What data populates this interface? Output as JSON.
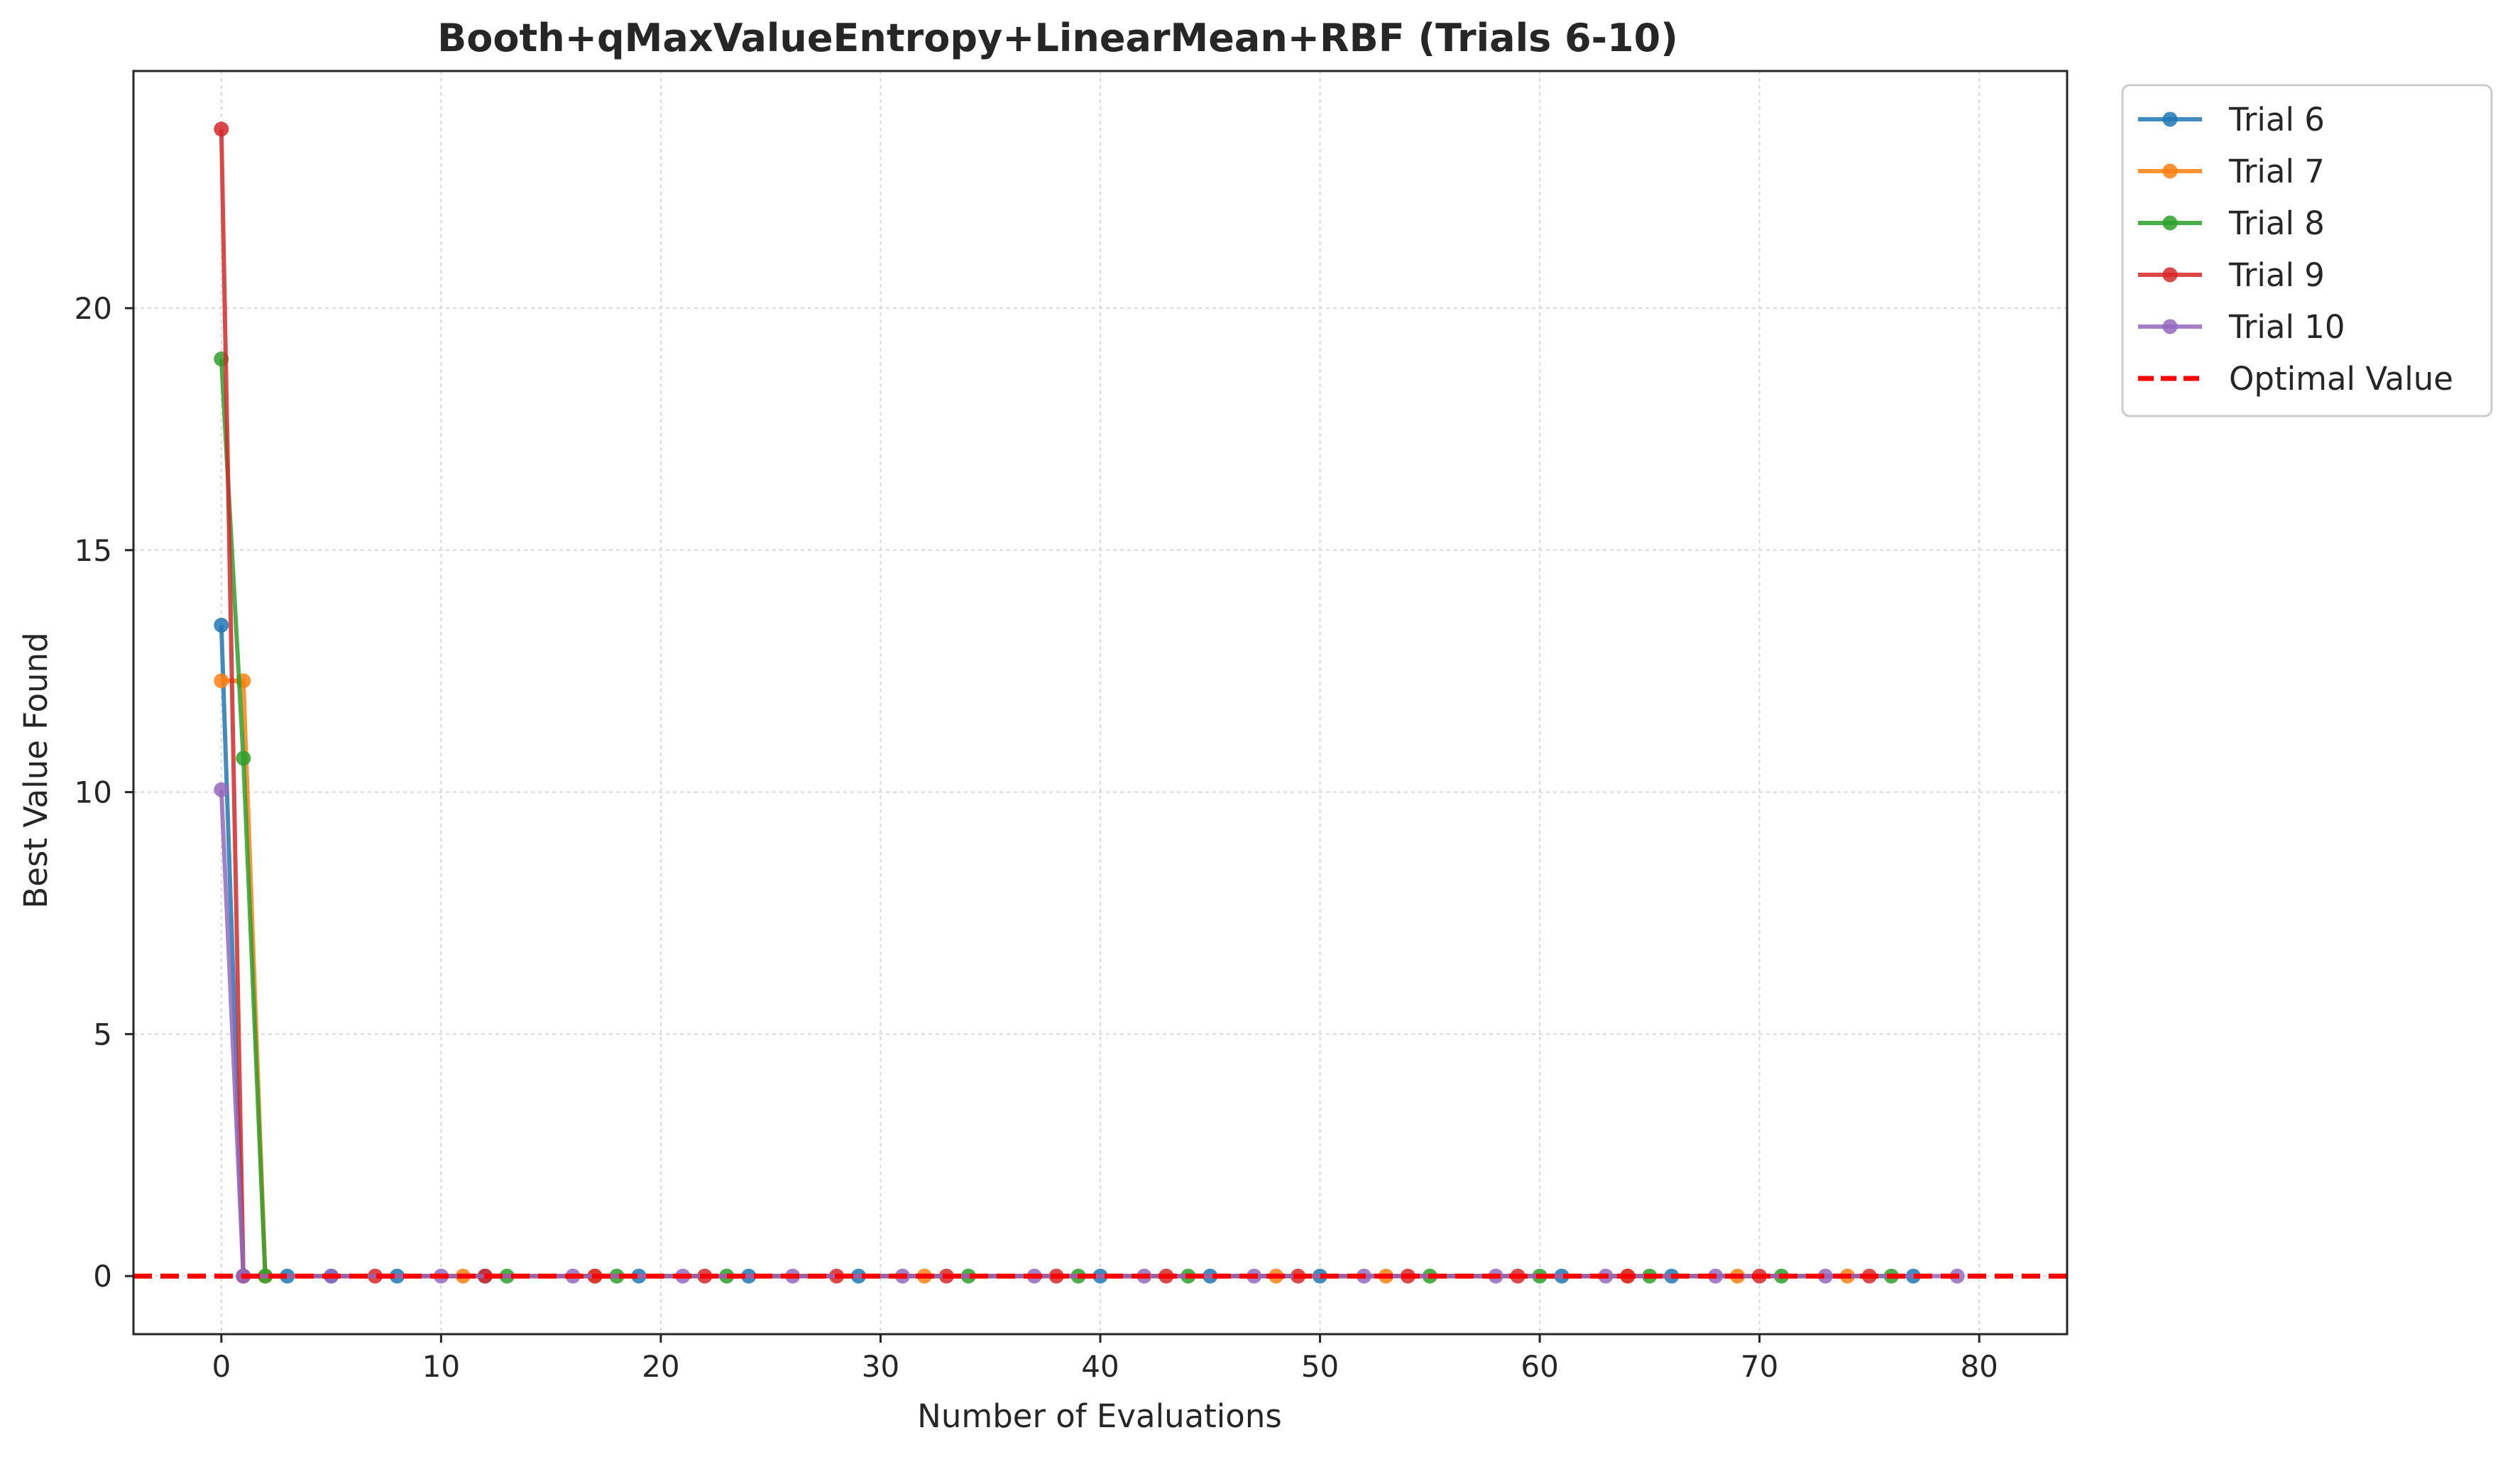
{
  "chart_data": {
    "type": "line",
    "title": "Booth+qMaxValueEntropy+LinearMean+RBF (Trials 6-10)",
    "xlabel": "Number of Evaluations",
    "ylabel": "Best Value Found",
    "xlim": [
      -4,
      84
    ],
    "ylim": [
      -1.2,
      24.9
    ],
    "xticks": [
      0,
      10,
      20,
      30,
      40,
      50,
      60,
      70,
      80
    ],
    "yticks": [
      0,
      5,
      10,
      15,
      20
    ],
    "grid": true,
    "legend_position": "outside-top-right",
    "series": [
      {
        "name": "Trial 6",
        "color": "#1f77b4",
        "points": [
          [
            0,
            13.45
          ],
          [
            1,
            0.0
          ],
          [
            3,
            0.0
          ],
          [
            5,
            0.0
          ],
          [
            8,
            0.0
          ],
          [
            12,
            0.0
          ],
          [
            19,
            0.0
          ],
          [
            24,
            0.0
          ],
          [
            29,
            0.0
          ],
          [
            40,
            0.0
          ],
          [
            45,
            0.0
          ],
          [
            50,
            0.0
          ],
          [
            61,
            0.0
          ],
          [
            66,
            0.0
          ],
          [
            77,
            0.0
          ]
        ]
      },
      {
        "name": "Trial 7",
        "color": "#ff7f0e",
        "points": [
          [
            0,
            12.3
          ],
          [
            1,
            12.3
          ],
          [
            2,
            0.0
          ],
          [
            11,
            0.0
          ],
          [
            17,
            0.0
          ],
          [
            32,
            0.0
          ],
          [
            48,
            0.0
          ],
          [
            53,
            0.0
          ],
          [
            64,
            0.0
          ],
          [
            69,
            0.0
          ],
          [
            74,
            0.0
          ]
        ]
      },
      {
        "name": "Trial 8",
        "color": "#2ca02c",
        "points": [
          [
            0,
            18.95
          ],
          [
            1,
            10.7
          ],
          [
            2,
            0.0
          ],
          [
            13,
            0.0
          ],
          [
            18,
            0.0
          ],
          [
            23,
            0.0
          ],
          [
            34,
            0.0
          ],
          [
            39,
            0.0
          ],
          [
            44,
            0.0
          ],
          [
            55,
            0.0
          ],
          [
            60,
            0.0
          ],
          [
            65,
            0.0
          ],
          [
            71,
            0.0
          ],
          [
            76,
            0.0
          ]
        ]
      },
      {
        "name": "Trial 9",
        "color": "#d62728",
        "points": [
          [
            0,
            23.7
          ],
          [
            1,
            0.0
          ],
          [
            7,
            0.0
          ],
          [
            12,
            0.0
          ],
          [
            17,
            0.0
          ],
          [
            22,
            0.0
          ],
          [
            28,
            0.0
          ],
          [
            33,
            0.0
          ],
          [
            38,
            0.0
          ],
          [
            43,
            0.0
          ],
          [
            49,
            0.0
          ],
          [
            54,
            0.0
          ],
          [
            59,
            0.0
          ],
          [
            64,
            0.0
          ],
          [
            70,
            0.0
          ],
          [
            75,
            0.0
          ]
        ]
      },
      {
        "name": "Trial 10",
        "color": "#9467bd",
        "points": [
          [
            0,
            10.05
          ],
          [
            1,
            0.0
          ],
          [
            5,
            0.0
          ],
          [
            10,
            0.0
          ],
          [
            16,
            0.0
          ],
          [
            21,
            0.0
          ],
          [
            26,
            0.0
          ],
          [
            31,
            0.0
          ],
          [
            37,
            0.0
          ],
          [
            42,
            0.0
          ],
          [
            47,
            0.0
          ],
          [
            52,
            0.0
          ],
          [
            58,
            0.0
          ],
          [
            63,
            0.0
          ],
          [
            68,
            0.0
          ],
          [
            73,
            0.0
          ],
          [
            79,
            0.0
          ]
        ]
      }
    ],
    "reference_line": {
      "name": "Optimal Value",
      "y": 0,
      "color": "#ff0000",
      "style": "dashed"
    }
  }
}
